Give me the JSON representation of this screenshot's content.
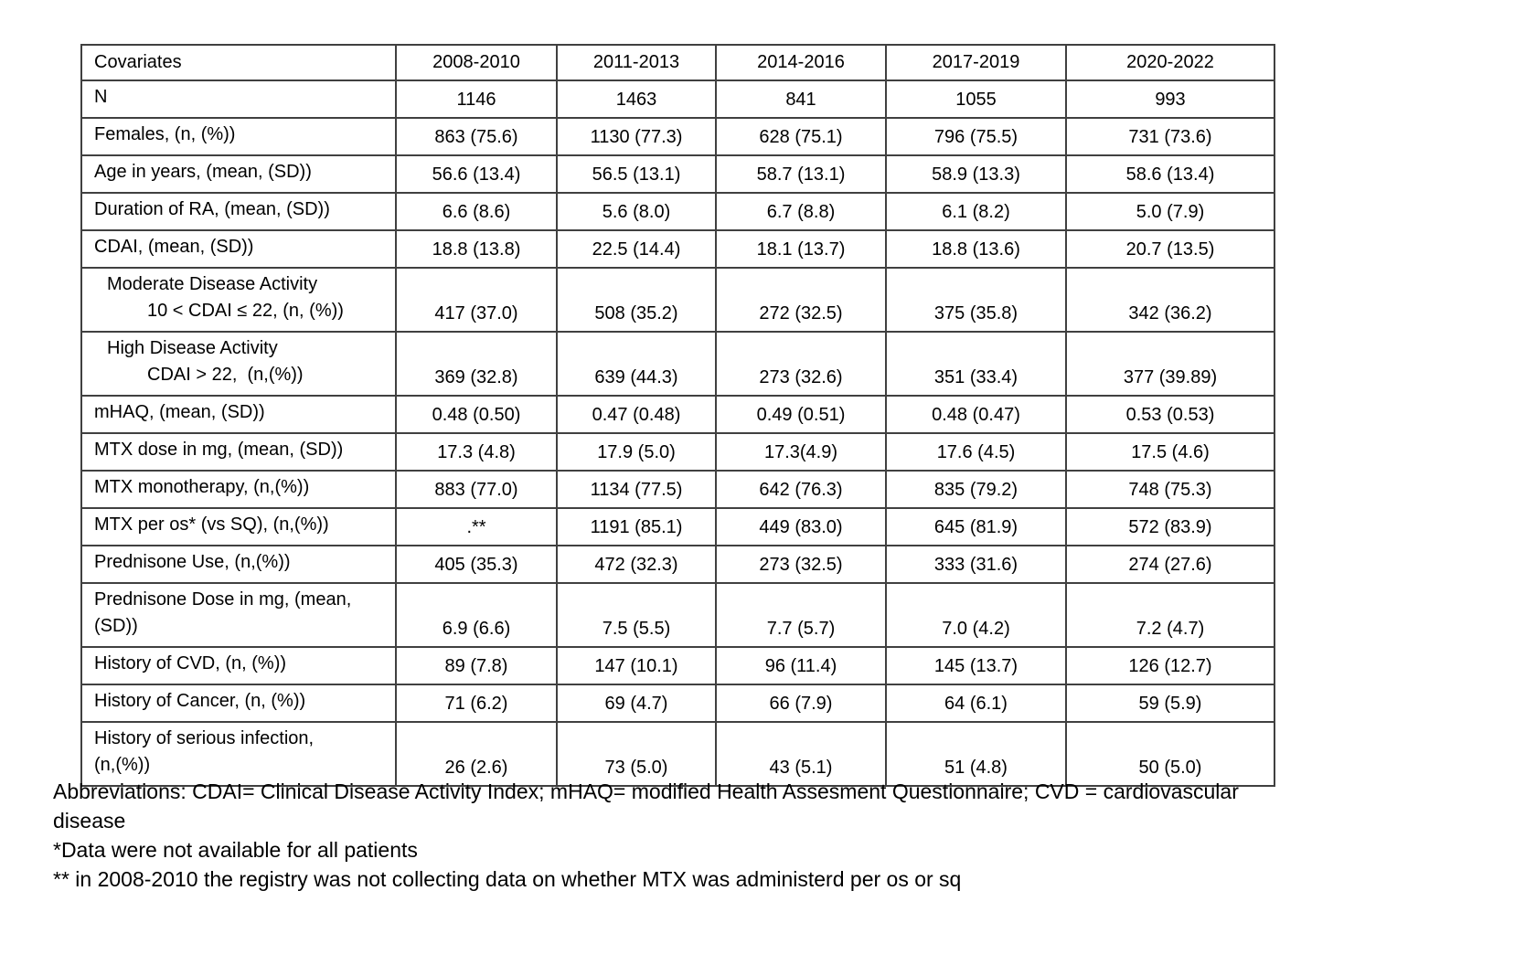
{
  "table": {
    "header": {
      "label_col": "Covariates",
      "periods": [
        "2008-2010",
        "2011-2013",
        "2014-2016",
        "2017-2019",
        "2020-2022"
      ]
    },
    "rows": [
      {
        "label_lines": [
          "N"
        ],
        "values": [
          "1146",
          "1463",
          "841",
          "1055",
          "993"
        ]
      },
      {
        "label_lines": [
          "Females, (n, (%))"
        ],
        "values": [
          "863 (75.6)",
          "1130 (77.3)",
          "628 (75.1)",
          "796 (75.5)",
          "731 (73.6)"
        ]
      },
      {
        "label_lines": [
          "Age in years, (mean, (SD))"
        ],
        "values": [
          "56.6 (13.4)",
          "56.5 (13.1)",
          "58.7 (13.1)",
          "58.9 (13.3)",
          "58.6 (13.4)"
        ]
      },
      {
        "label_lines": [
          "Duration of RA, (mean, (SD))"
        ],
        "values": [
          "6.6 (8.6)",
          "5.6 (8.0)",
          "6.7 (8.8)",
          "6.1 (8.2)",
          "5.0 (7.9)"
        ]
      },
      {
        "label_lines": [
          "CDAI, (mean, (SD))"
        ],
        "values": [
          "18.8 (13.8)",
          "22.5 (14.4)",
          "18.1 (13.7)",
          "18.8 (13.6)",
          "20.7 (13.5)"
        ]
      },
      {
        "label_lines": [
          "Moderate Disease Activity",
          "10 < CDAI ≤ 22, (n, (%))"
        ],
        "indent": true,
        "values": [
          "417 (37.0)",
          "508 (35.2)",
          "272 (32.5)",
          "375 (35.8)",
          "342 (36.2)"
        ]
      },
      {
        "label_lines": [
          "High Disease Activity",
          "CDAI > 22,  (n,(%))"
        ],
        "indent": true,
        "values": [
          "369 (32.8)",
          "639 (44.3)",
          "273 (32.6)",
          "351 (33.4)",
          "377 (39.89)"
        ]
      },
      {
        "label_lines": [
          "mHAQ, (mean, (SD))"
        ],
        "values": [
          "0.48 (0.50)",
          "0.47 (0.48)",
          "0.49 (0.51)",
          "0.48 (0.47)",
          "0.53 (0.53)"
        ]
      },
      {
        "label_lines": [
          "MTX dose in mg, (mean, (SD))"
        ],
        "values": [
          "17.3 (4.8)",
          "17.9 (5.0)",
          "17.3(4.9)",
          "17.6 (4.5)",
          "17.5 (4.6)"
        ]
      },
      {
        "label_lines": [
          "MTX monotherapy, (n,(%))"
        ],
        "values": [
          "883 (77.0)",
          "1134 (77.5)",
          "642 (76.3)",
          "835 (79.2)",
          "748 (75.3)"
        ]
      },
      {
        "label_lines": [
          "MTX per os* (vs SQ), (n,(%))"
        ],
        "values": [
          ".**",
          "1191 (85.1)",
          "449 (83.0)",
          "645 (81.9)",
          "572 (83.9)"
        ]
      },
      {
        "label_lines": [
          "Prednisone Use, (n,(%))"
        ],
        "values": [
          "405 (35.3)",
          "472 (32.3)",
          "273 (32.5)",
          "333 (31.6)",
          "274 (27.6)"
        ]
      },
      {
        "label_lines": [
          "Prednisone Dose in mg, (mean,",
          "(SD))"
        ],
        "values": [
          "6.9 (6.6)",
          "7.5 (5.5)",
          "7.7 (5.7)",
          "7.0 (4.2)",
          "7.2 (4.7)"
        ]
      },
      {
        "label_lines": [
          "History of CVD, (n, (%))"
        ],
        "values": [
          "89 (7.8)",
          "147 (10.1)",
          "96 (11.4)",
          "145 (13.7)",
          "126 (12.7)"
        ]
      },
      {
        "label_lines": [
          "History of Cancer, (n, (%))"
        ],
        "values": [
          "71 (6.2)",
          "69 (4.7)",
          "66 (7.9)",
          "64 (6.1)",
          "59 (5.9)"
        ]
      },
      {
        "label_lines": [
          "History of serious infection,",
          "(n,(%))"
        ],
        "values": [
          "26 (2.6)",
          "73 (5.0)",
          "43 (5.1)",
          "51 (4.8)",
          "50 (5.0)"
        ]
      }
    ]
  },
  "footnotes": {
    "lines": [
      "Abbreviations: CDAI= Clinical Disease Activity Index; mHAQ= modified Health Assesment Questionnaire; CVD = cardiovascular",
      "disease",
      "*Data were not available for all patients",
      "** in 2008-2010 the registry was not collecting data on whether MTX was administerd per os or sq"
    ]
  },
  "colors": {
    "border": "#404040",
    "text": "#000000",
    "background": "#ffffff"
  }
}
